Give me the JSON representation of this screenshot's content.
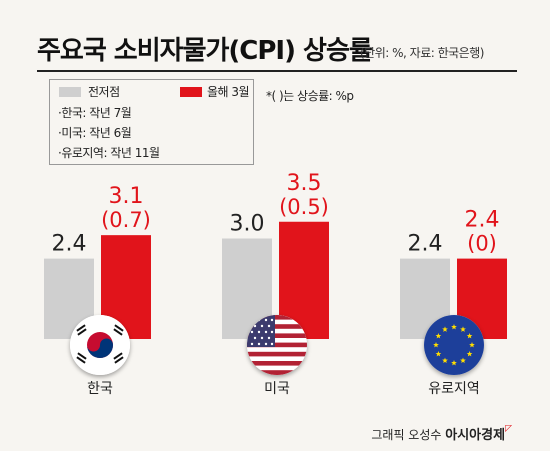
{
  "header": {
    "title": "주요국 소비자물가(CPI) 상승률",
    "subtitle": "(단위: %, 자료: 한국은행)"
  },
  "legend": {
    "prev_label": "전저점",
    "curr_label": "올해 3월",
    "notes": [
      "·한국: 작년 7월",
      "·미국: 작년 6월",
      "·유로지역: 작년 11월"
    ],
    "footnote": "*( )는 상승률: %p"
  },
  "colors": {
    "prev": "#cfcfcf",
    "curr": "#e1141b",
    "curr_text": "#e1141b",
    "background": "#f7f5f1"
  },
  "chart_data": {
    "type": "bar",
    "categories": [
      "한국",
      "미국",
      "유로지역"
    ],
    "series": [
      {
        "name": "전저점",
        "values": [
          2.4,
          3.0,
          2.4
        ]
      },
      {
        "name": "올해 3월",
        "values": [
          3.1,
          3.5,
          2.4
        ]
      }
    ],
    "labels": {
      "prev": [
        "2.4",
        "3.0",
        "2.4"
      ],
      "curr": [
        "3.1",
        "3.5",
        "2.4"
      ],
      "change": [
        "(0.7)",
        "(0.5)",
        "(0)"
      ]
    },
    "icons": [
      "korea-flag-icon",
      "usa-flag-icon",
      "eu-flag-icon"
    ],
    "title": "주요국 소비자물가(CPI) 상승률",
    "xlabel": "",
    "ylabel": ""
  },
  "credit": {
    "text": "그래픽 오성수",
    "brand": "아시아경제"
  }
}
